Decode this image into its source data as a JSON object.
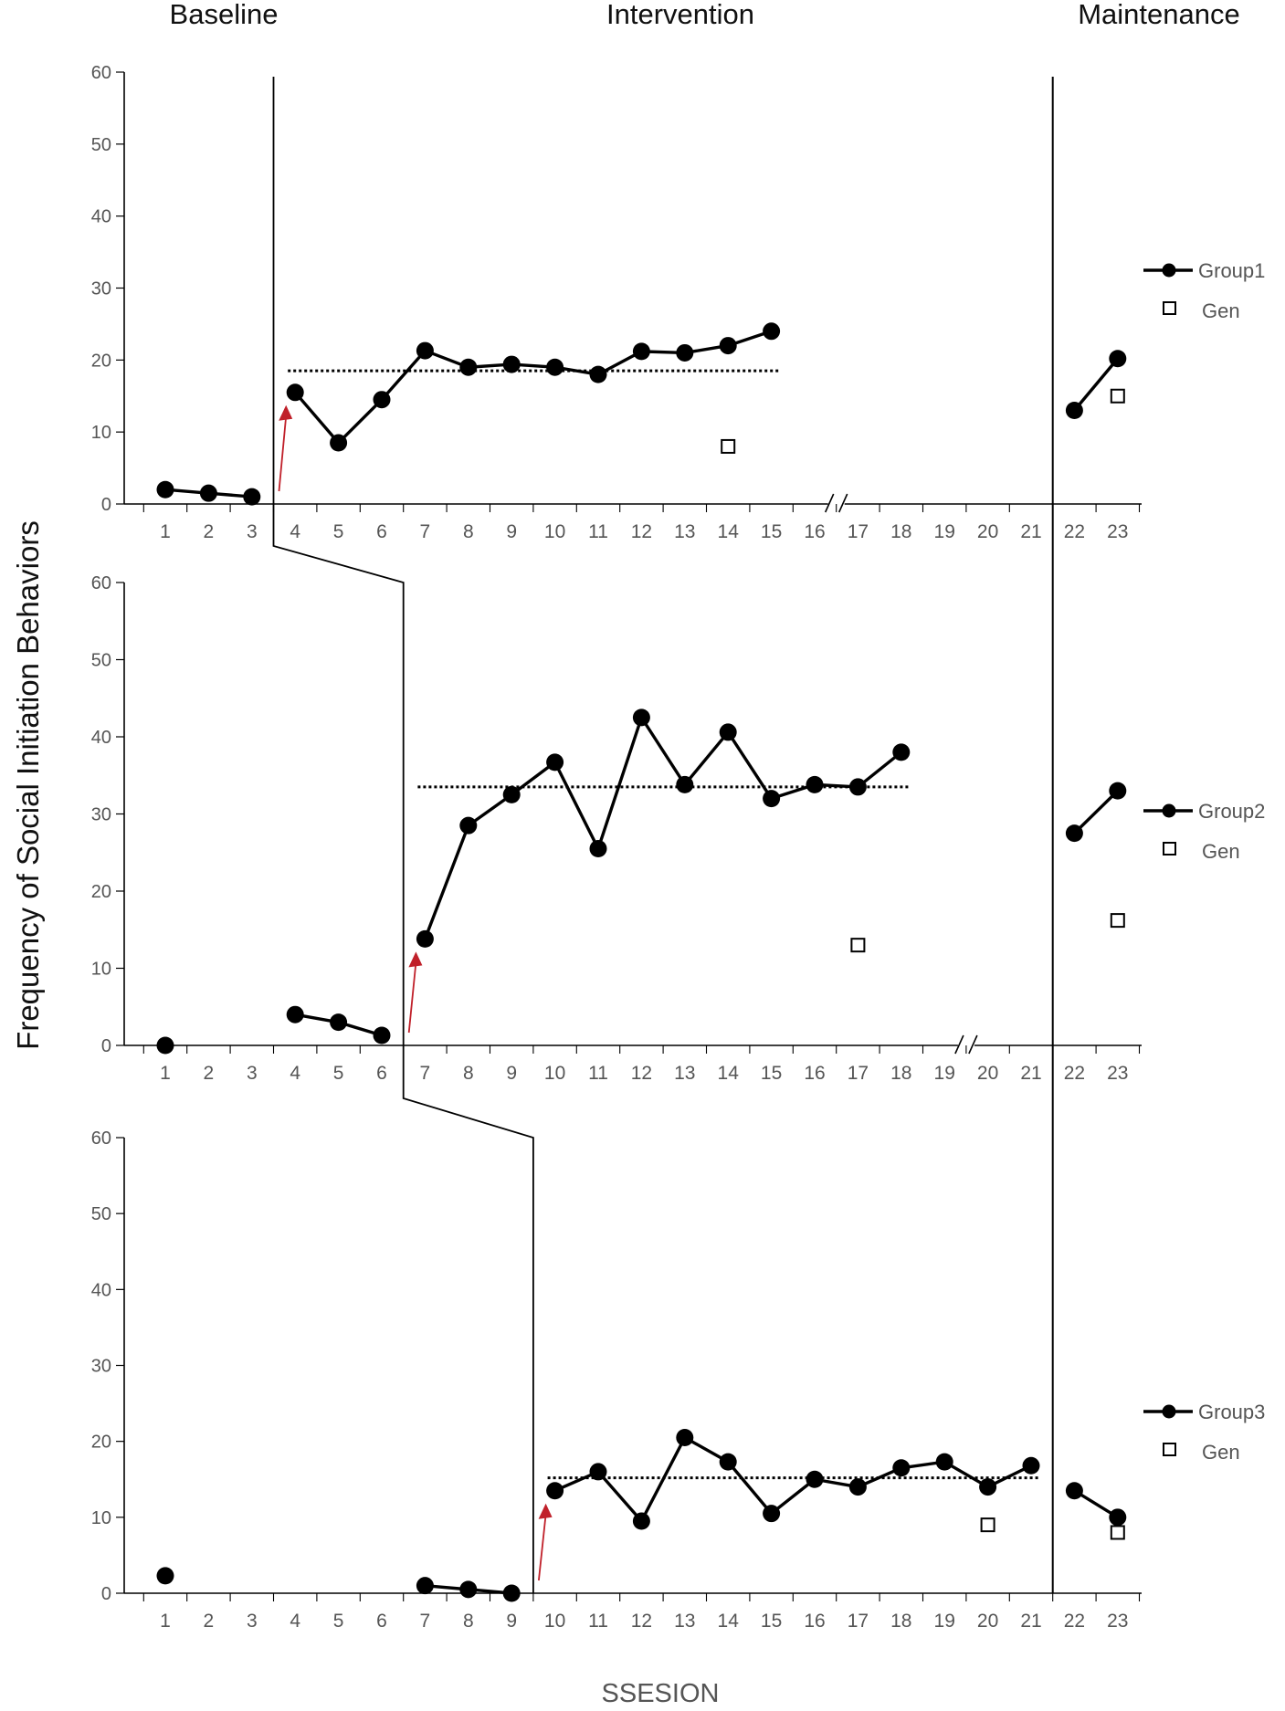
{
  "chart_data": {
    "type": "line",
    "title": "",
    "ylabel": "Frequency of Social Initiation Behaviors",
    "xlabel": "SSESION",
    "phases": [
      "Baseline",
      "Intervention",
      "Maintenance"
    ],
    "x_ticks": [
      "1",
      "2",
      "3",
      "4",
      "5",
      "6",
      "7",
      "8",
      "9",
      "10",
      "11",
      "12",
      "13",
      "14",
      "15",
      "16",
      "17",
      "18",
      "19",
      "20",
      "21",
      "22",
      "23"
    ],
    "y_ticks": [
      "0",
      "10",
      "20",
      "30",
      "40",
      "50",
      "60"
    ],
    "ylim": [
      0,
      60
    ],
    "xlim": [
      1,
      23
    ],
    "colors": {
      "series": "#000000",
      "arrow": "#c0202a",
      "axis": "#000000"
    },
    "panels": [
      {
        "series": [
          {
            "name": "Group1",
            "segments": [
              [
                [
                  1,
                  2
                ],
                [
                  2,
                  1.5
                ],
                [
                  3,
                  1
                ]
              ],
              [
                [
                  4,
                  15.5
                ],
                [
                  5,
                  8.5
                ],
                [
                  6,
                  14.5
                ],
                [
                  7,
                  21.3
                ],
                [
                  8,
                  19
                ],
                [
                  9,
                  19.4
                ],
                [
                  10,
                  19
                ],
                [
                  11,
                  18
                ],
                [
                  12,
                  21.2
                ],
                [
                  13,
                  21
                ],
                [
                  14,
                  22
                ],
                [
                  15,
                  24
                ]
              ],
              [
                [
                  22,
                  13
                ],
                [
                  23,
                  20.2
                ]
              ]
            ]
          },
          {
            "name": "Gen",
            "points": [
              [
                14,
                8
              ],
              [
                23,
                15
              ]
            ]
          }
        ],
        "trend_line": {
          "x": [
            4,
            15
          ],
          "y": 18.5
        },
        "phase_change_x": 3.5,
        "axis_break_x": 16,
        "intervention_start_x": 4
      },
      {
        "series": [
          {
            "name": "Group2",
            "segments": [
              [
                [
                  1,
                  0
                ]
              ],
              [
                [
                  4,
                  4
                ],
                [
                  5,
                  3
                ],
                [
                  6,
                  1.3
                ]
              ],
              [
                [
                  7,
                  13.8
                ],
                [
                  8,
                  28.5
                ],
                [
                  9,
                  32.5
                ],
                [
                  10,
                  36.7
                ],
                [
                  11,
                  25.5
                ],
                [
                  12,
                  42.5
                ],
                [
                  13,
                  33.8
                ],
                [
                  14,
                  40.6
                ],
                [
                  15,
                  32
                ],
                [
                  16,
                  33.8
                ],
                [
                  17,
                  33.5
                ],
                [
                  18,
                  38
                ]
              ],
              [
                [
                  22,
                  27.5
                ],
                [
                  23,
                  33
                ]
              ]
            ]
          },
          {
            "name": "Gen",
            "points": [
              [
                17,
                13
              ],
              [
                23,
                16.2
              ]
            ]
          }
        ],
        "trend_line": {
          "x": [
            7,
            18
          ],
          "y": 33.5
        },
        "phase_change_x": 6.5,
        "axis_break_x": 19,
        "intervention_start_x": 7
      },
      {
        "series": [
          {
            "name": "Group3",
            "segments": [
              [
                [
                  1,
                  2.3
                ]
              ],
              [
                [
                  7,
                  1
                ],
                [
                  8,
                  0.5
                ],
                [
                  9,
                  0
                ]
              ],
              [
                [
                  10,
                  13.5
                ],
                [
                  11,
                  16
                ],
                [
                  12,
                  9.5
                ],
                [
                  13,
                  20.5
                ],
                [
                  14,
                  17.3
                ],
                [
                  15,
                  10.5
                ],
                [
                  16,
                  15
                ],
                [
                  17,
                  14
                ],
                [
                  18,
                  16.5
                ],
                [
                  19,
                  17.3
                ],
                [
                  20,
                  14
                ],
                [
                  21,
                  16.8
                ]
              ],
              [
                [
                  22,
                  13.5
                ],
                [
                  23,
                  10
                ]
              ]
            ]
          },
          {
            "name": "Gen",
            "points": [
              [
                20,
                9
              ],
              [
                23,
                8
              ]
            ]
          }
        ],
        "trend_line": {
          "x": [
            10,
            21
          ],
          "y": 15.2
        },
        "phase_change_x": 9.5,
        "intervention_start_x": 10
      }
    ],
    "maintenance_line_x": 21.5
  }
}
